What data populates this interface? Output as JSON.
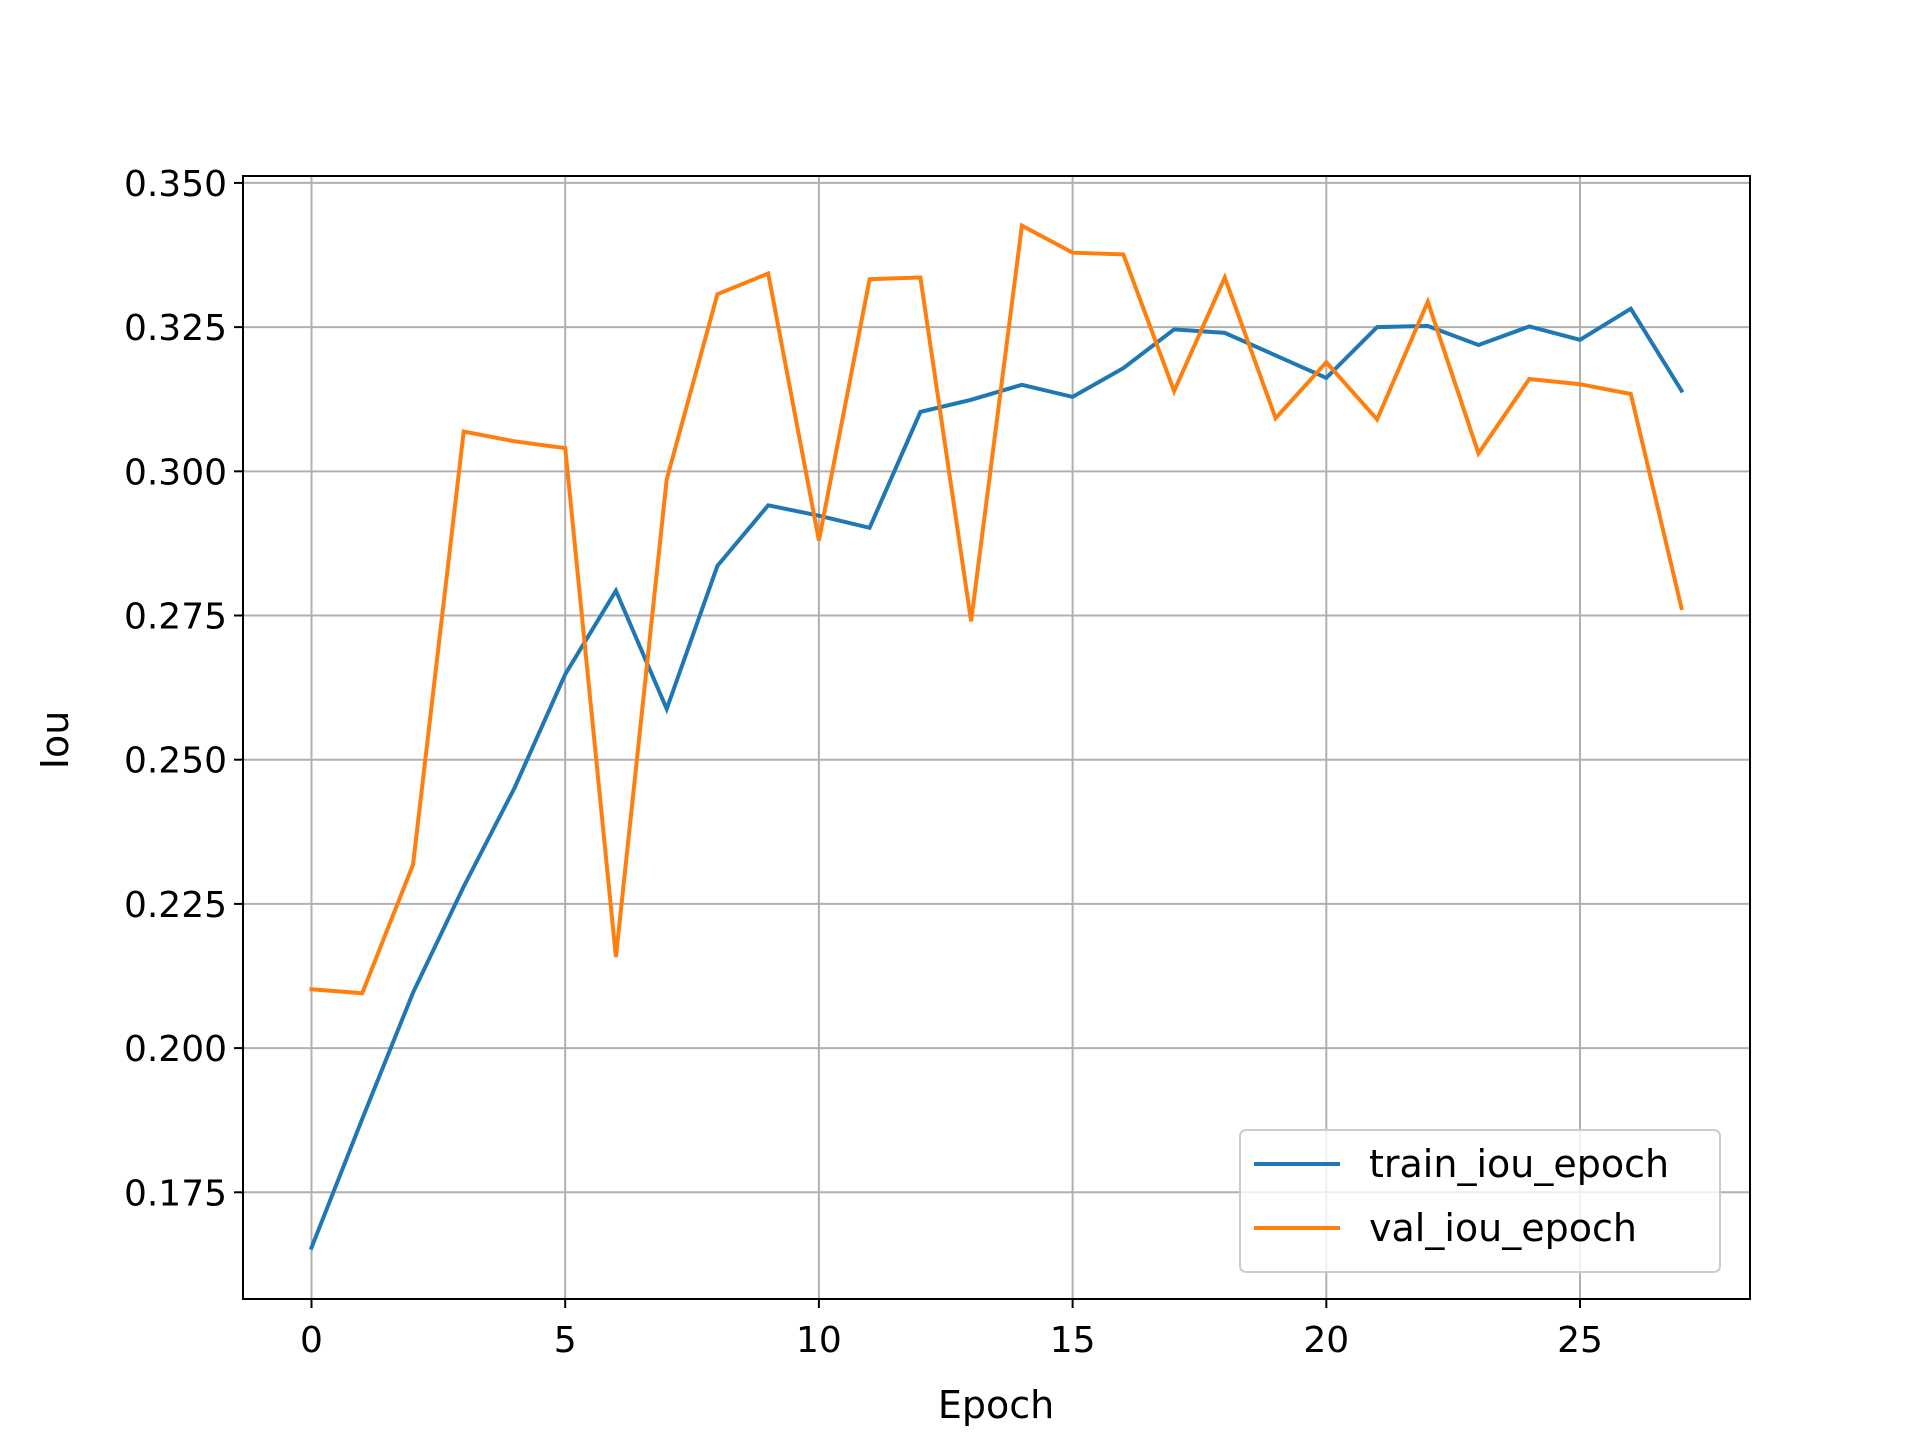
{
  "chart_data": {
    "type": "line",
    "title": "",
    "xlabel": "Epoch",
    "ylabel": "Iou",
    "xlim": [
      -1.35,
      28.35
    ],
    "ylim": [
      0.1565,
      0.3512
    ],
    "xticks": [
      0,
      5,
      10,
      15,
      20,
      25
    ],
    "yticks": [
      0.175,
      0.2,
      0.225,
      0.25,
      0.275,
      0.3,
      0.325,
      0.35
    ],
    "xtick_labels": [
      "0",
      "5",
      "10",
      "15",
      "20",
      "25"
    ],
    "ytick_labels": [
      "0.175",
      "0.200",
      "0.225",
      "0.250",
      "0.275",
      "0.300",
      "0.325",
      "0.350"
    ],
    "grid": true,
    "legend_position": "lower-right",
    "x": [
      0,
      1,
      2,
      3,
      4,
      5,
      6,
      7,
      8,
      9,
      10,
      11,
      12,
      13,
      14,
      15,
      16,
      17,
      18,
      19,
      20,
      21,
      22,
      23,
      24,
      25,
      26,
      27
    ],
    "series": [
      {
        "name": "train_iou_epoch",
        "color": "#1f77b4",
        "values": [
          0.1654,
          0.1877,
          0.2096,
          0.228,
          0.2451,
          0.2648,
          0.2793,
          0.2588,
          0.2836,
          0.2941,
          0.2923,
          0.2902,
          0.3103,
          0.3124,
          0.315,
          0.3129,
          0.3179,
          0.3246,
          0.324,
          0.3201,
          0.3162,
          0.325,
          0.3252,
          0.3219,
          0.3251,
          0.3228,
          0.3282,
          0.314
        ]
      },
      {
        "name": "val_iou_epoch",
        "color": "#ff7f0e",
        "values": [
          0.2102,
          0.2095,
          0.2318,
          0.3069,
          0.3052,
          0.304,
          0.2158,
          0.2986,
          0.3307,
          0.3343,
          0.288,
          0.3333,
          0.3336,
          0.274,
          0.3426,
          0.3379,
          0.3376,
          0.3139,
          0.3336,
          0.3092,
          0.3189,
          0.309,
          0.3294,
          0.3031,
          0.316,
          0.3151,
          0.3134,
          0.2763
        ]
      }
    ]
  }
}
